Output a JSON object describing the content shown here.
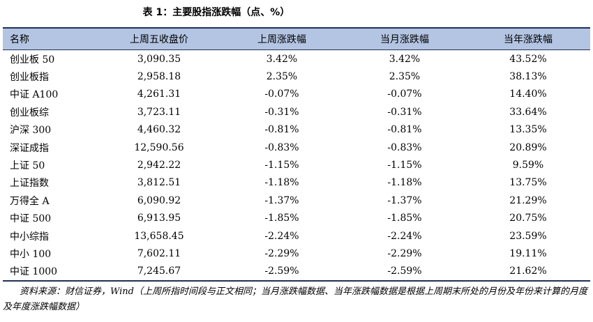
{
  "caption": "表 1：主要股指涨跌幅（点、%）",
  "table": {
    "headers": [
      "名称",
      "上周五收盘价",
      "上周涨跌幅",
      "当月涨跌幅",
      "当年涨跌幅"
    ],
    "rows": [
      [
        "创业板 50",
        "3,090.35",
        "3.42%",
        "3.42%",
        "43.52%"
      ],
      [
        "创业板指",
        "2,958.18",
        "2.35%",
        "2.35%",
        "38.13%"
      ],
      [
        "中证 A100",
        "4,261.31",
        "-0.07%",
        "-0.07%",
        "14.40%"
      ],
      [
        "创业板综",
        "3,723.11",
        "-0.31%",
        "-0.31%",
        "33.64%"
      ],
      [
        "沪深 300",
        "4,460.32",
        "-0.81%",
        "-0.81%",
        "13.35%"
      ],
      [
        "深证成指",
        "12,590.56",
        "-0.83%",
        "-0.83%",
        "20.89%"
      ],
      [
        "上证 50",
        "2,942.22",
        "-1.15%",
        "-1.15%",
        "9.59%"
      ],
      [
        "上证指数",
        "3,812.51",
        "-1.18%",
        "-1.18%",
        "13.75%"
      ],
      [
        "万得全 A",
        "6,090.92",
        "-1.37%",
        "-1.37%",
        "21.29%"
      ],
      [
        "中证 500",
        "6,913.95",
        "-1.85%",
        "-1.85%",
        "20.75%"
      ],
      [
        "中小综指",
        "13,658.45",
        "-2.24%",
        "-2.24%",
        "23.59%"
      ],
      [
        "中小 100",
        "7,602.11",
        "-2.29%",
        "-2.29%",
        "19.11%"
      ],
      [
        "中证 1000",
        "7,245.67",
        "-2.59%",
        "-2.59%",
        "21.62%"
      ]
    ]
  },
  "source": "资料来源：财信证券，Wind（上周所指时间段与正文相同；当月涨跌幅数据、当年涨跌幅数据是根据上周期末所处的月份及年份来计算的月度及年度涨跌幅数据）"
}
